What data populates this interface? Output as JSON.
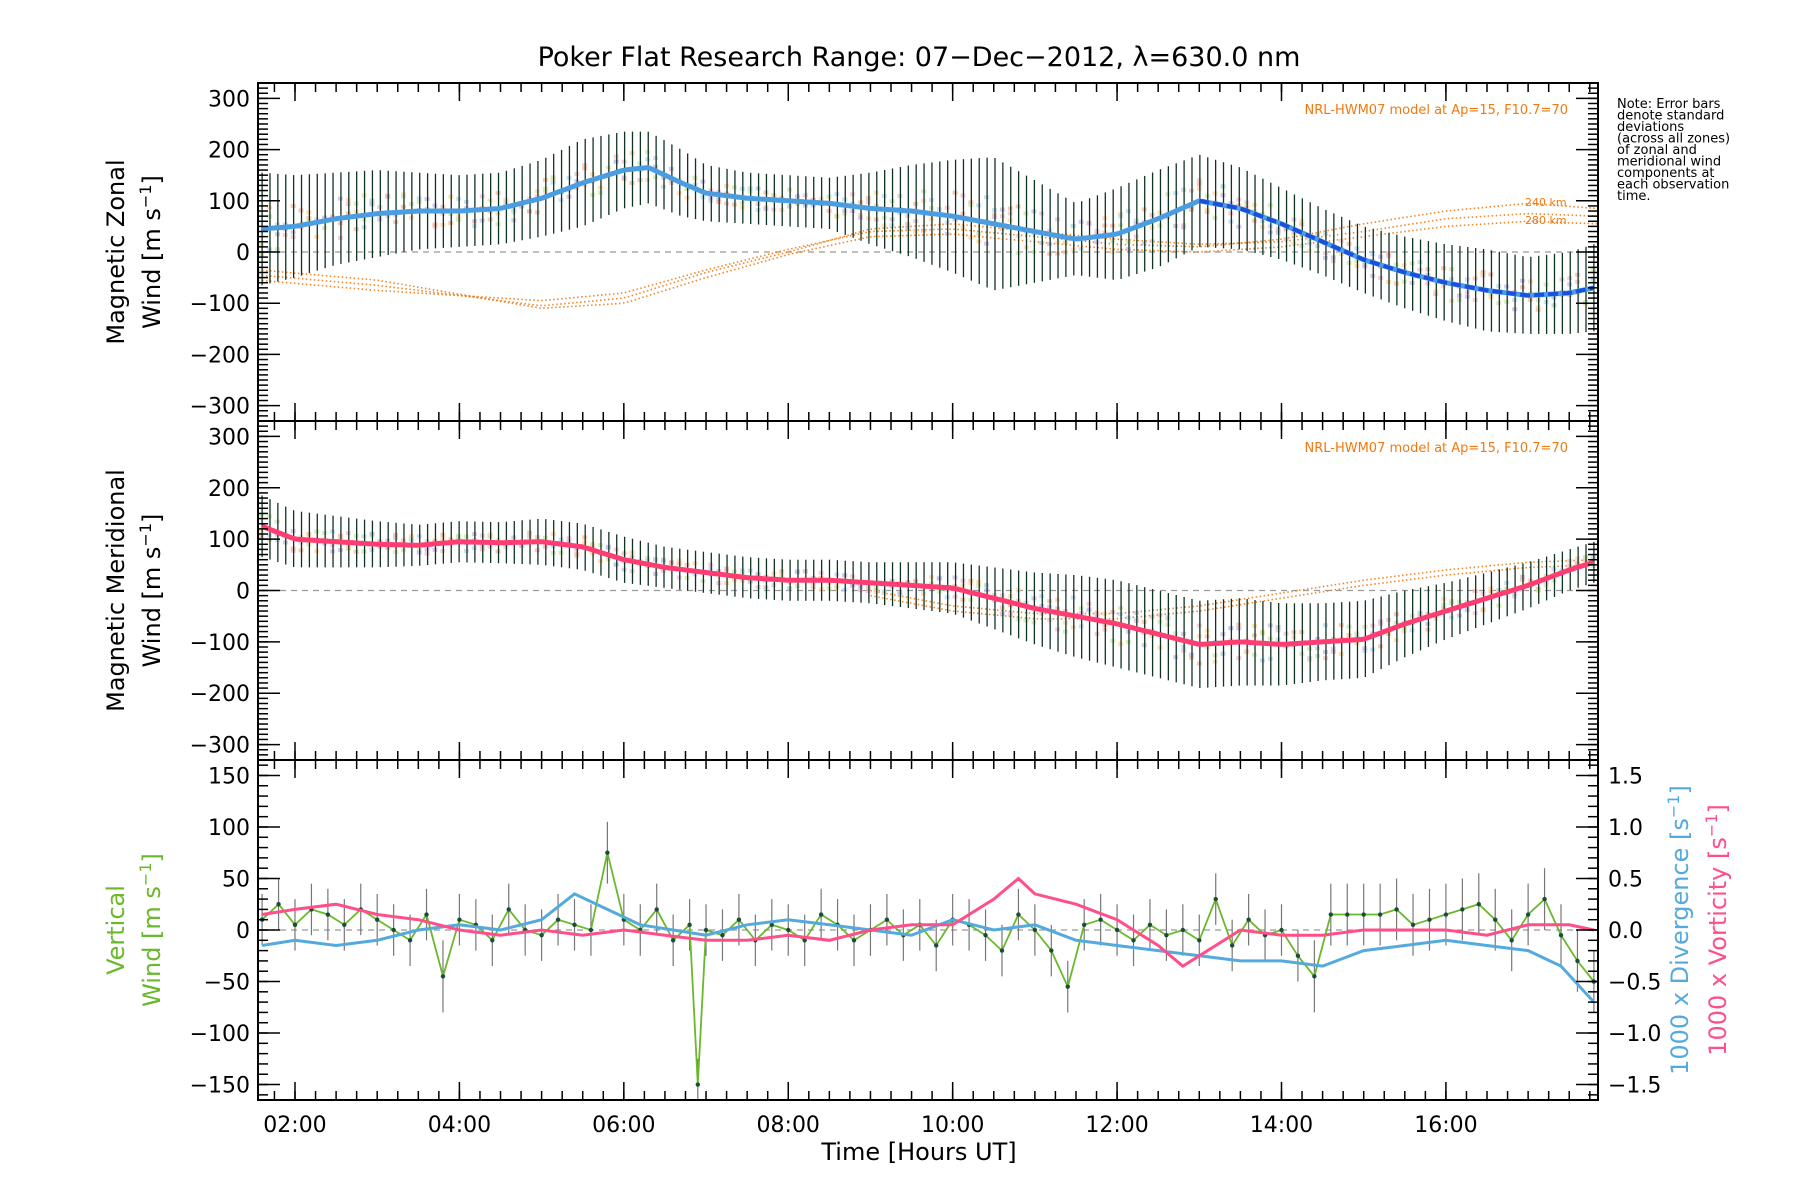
{
  "title": "Poker Flat Research Range: 07−Dec−2012, λ=630.0 nm",
  "note_lines": [
    "Note: Error bars",
    "denote standard",
    "deviations",
    "(across all zones)",
    "of zonal and",
    "meridional wind",
    "components at",
    "each observation",
    "time."
  ],
  "x_axis": {
    "label": "Time [Hours UT]",
    "ticks": [
      "02:00",
      "04:00",
      "06:00",
      "08:00",
      "10:00",
      "12:00",
      "14:00",
      "16:00"
    ],
    "tick_values": [
      2,
      4,
      6,
      8,
      10,
      12,
      14,
      16
    ],
    "range": [
      1.55,
      17.85
    ]
  },
  "colors": {
    "zonal": "#4a9de0",
    "zonal_late": "#1a4fe0",
    "meridional": "#ff3d73",
    "vertical": "#6ab82b",
    "divergence": "#55aadd",
    "vorticity": "#ff4f8b",
    "model": "#f07a10",
    "errorbar": "#113322"
  },
  "chart_data": [
    {
      "type": "line",
      "panel": "zonal",
      "ylabel_line1": "Magnetic Zonal",
      "ylabel_line2": "Wind [m s",
      "ylabel_sup": "−1",
      "ylabel_close": "]",
      "yticks": [
        "300",
        "200",
        "100",
        "0",
        "−100",
        "−200",
        "−300"
      ],
      "ytick_values": [
        300,
        200,
        100,
        0,
        -100,
        -200,
        -300
      ],
      "ylim": [
        -330,
        330
      ],
      "model_label": "NRL-HWM07 model at Ap=15, F10.7=70",
      "model_altitudes": [
        "240 km",
        "280 km"
      ],
      "series": [
        {
          "x": [
            1.6,
            2.0,
            2.5,
            3.0,
            3.5,
            4.0,
            4.5,
            5.0,
            5.5,
            6.0,
            6.3,
            6.7,
            7.0,
            7.5,
            8.0,
            8.5,
            9.0,
            9.5,
            10.0,
            10.5,
            11.0,
            11.5,
            12.0,
            12.5,
            13.0,
            13.5,
            14.0,
            14.5,
            15.0,
            15.5,
            16.0,
            16.5,
            17.0,
            17.5,
            17.8
          ],
          "y": [
            45,
            50,
            65,
            75,
            80,
            80,
            85,
            105,
            135,
            160,
            165,
            135,
            115,
            105,
            100,
            95,
            85,
            80,
            70,
            55,
            40,
            25,
            35,
            65,
            100,
            85,
            55,
            20,
            -15,
            -40,
            -60,
            -75,
            -85,
            -80,
            -70
          ],
          "err": [
            110,
            100,
            90,
            85,
            75,
            70,
            70,
            75,
            85,
            75,
            70,
            65,
            55,
            50,
            50,
            50,
            70,
            90,
            110,
            130,
            100,
            70,
            90,
            95,
            90,
            80,
            70,
            65,
            65,
            70,
            75,
            80,
            75,
            80,
            85
          ]
        }
      ],
      "model_curves": [
        {
          "x": [
            1.55,
            3.0,
            5.0,
            6.0,
            7.0,
            8.0,
            9.0,
            10.0,
            11.0,
            12.0,
            13.0,
            14.0,
            15.0,
            16.0,
            17.0,
            17.85
          ],
          "y": [
            -45,
            -65,
            -105,
            -90,
            -40,
            0,
            45,
            55,
            40,
            25,
            15,
            20,
            40,
            65,
            75,
            70
          ]
        },
        {
          "x": [
            1.55,
            3.0,
            5.0,
            6.0,
            7.0,
            8.0,
            9.0,
            10.0,
            11.0,
            12.0,
            13.0,
            14.0,
            15.0,
            16.0,
            17.0,
            17.85
          ],
          "y": [
            -55,
            -75,
            -95,
            -80,
            -35,
            5,
            40,
            45,
            30,
            15,
            10,
            25,
            55,
            80,
            95,
            85
          ]
        },
        {
          "x": [
            1.55,
            3.0,
            5.0,
            6.0,
            7.0,
            8.0,
            9.0,
            10.0,
            11.0,
            12.0,
            13.0,
            14.0,
            15.0,
            16.0,
            17.0,
            17.85
          ],
          "y": [
            -35,
            -55,
            -110,
            -100,
            -50,
            -5,
            30,
            35,
            20,
            5,
            0,
            10,
            30,
            50,
            60,
            55
          ]
        }
      ]
    },
    {
      "type": "line",
      "panel": "meridional",
      "ylabel_line1": "Magnetic Meridional",
      "ylabel_line2": "Wind [m s",
      "ylabel_sup": "−1",
      "ylabel_close": "]",
      "yticks": [
        "300",
        "200",
        "100",
        "0",
        "−100",
        "−200",
        "−300"
      ],
      "ytick_values": [
        300,
        200,
        100,
        0,
        -100,
        -200,
        -300
      ],
      "ylim": [
        -330,
        330
      ],
      "model_label": "NRL-HWM07 model at Ap=15, F10.7=70",
      "series": [
        {
          "x": [
            1.6,
            2.0,
            2.5,
            3.0,
            3.5,
            4.0,
            4.5,
            5.0,
            5.5,
            6.0,
            6.5,
            7.0,
            7.5,
            8.0,
            8.5,
            9.0,
            9.5,
            10.0,
            10.5,
            11.0,
            11.5,
            12.0,
            12.5,
            13.0,
            13.5,
            14.0,
            14.5,
            15.0,
            15.5,
            16.0,
            16.5,
            17.0,
            17.5,
            17.8
          ],
          "y": [
            125,
            100,
            95,
            90,
            88,
            95,
            93,
            95,
            85,
            60,
            45,
            35,
            25,
            20,
            20,
            15,
            10,
            5,
            -15,
            -35,
            -50,
            -65,
            -85,
            -105,
            -100,
            -105,
            -100,
            -95,
            -65,
            -40,
            -15,
            10,
            40,
            55
          ],
          "err": [
            60,
            55,
            50,
            45,
            40,
            40,
            40,
            45,
            45,
            45,
            40,
            40,
            40,
            40,
            40,
            40,
            45,
            50,
            60,
            70,
            80,
            85,
            85,
            85,
            85,
            80,
            75,
            75,
            65,
            55,
            50,
            45,
            40,
            40
          ]
        }
      ],
      "model_curves": [
        {
          "x": [
            9.0,
            10.0,
            11.0,
            12.0,
            13.0,
            14.0,
            15.0,
            16.0,
            17.0,
            17.85
          ],
          "y": [
            0,
            -30,
            -45,
            -45,
            -30,
            -5,
            20,
            40,
            55,
            60
          ]
        },
        {
          "x": [
            9.0,
            10.0,
            11.0,
            12.0,
            13.0,
            14.0,
            15.0,
            16.0,
            17.0,
            17.85
          ],
          "y": [
            -10,
            -40,
            -55,
            -55,
            -40,
            -15,
            10,
            30,
            45,
            50
          ]
        }
      ]
    },
    {
      "type": "line",
      "panel": "vertical",
      "ylabel_line1": "Vertical",
      "ylabel_line2": "Wind [m s",
      "ylabel_sup": "−1",
      "ylabel_close": "]",
      "yticks": [
        "150",
        "100",
        "50",
        "0",
        "−50",
        "−100",
        "−150"
      ],
      "ytick_values": [
        150,
        100,
        50,
        0,
        -50,
        -100,
        -150
      ],
      "ylim": [
        -165,
        165
      ],
      "right_yticks": [
        "1.5",
        "1.0",
        "0.5",
        "0.0",
        "−0.5",
        "−1.0",
        "−1.5"
      ],
      "right_ytick_values": [
        1.5,
        1.0,
        0.5,
        0.0,
        -0.5,
        -1.0,
        -1.5
      ],
      "right_ylim": [
        -1.65,
        1.65
      ],
      "right_label_div": "1000 x Divergence [s",
      "right_label_vort": "1000 x Vorticity [s",
      "right_label_sup": "−1",
      "right_label_close": "]",
      "series": [
        {
          "name": "vertical",
          "x": [
            1.6,
            1.8,
            2.0,
            2.2,
            2.4,
            2.6,
            2.8,
            3.0,
            3.2,
            3.4,
            3.6,
            3.8,
            4.0,
            4.2,
            4.4,
            4.6,
            4.8,
            5.0,
            5.2,
            5.4,
            5.6,
            5.8,
            6.0,
            6.2,
            6.4,
            6.6,
            6.8,
            6.9,
            7.0,
            7.2,
            7.4,
            7.6,
            7.8,
            8.0,
            8.2,
            8.4,
            8.6,
            8.8,
            9.0,
            9.2,
            9.4,
            9.6,
            9.8,
            10.0,
            10.2,
            10.4,
            10.6,
            10.8,
            11.0,
            11.2,
            11.4,
            11.6,
            11.8,
            12.0,
            12.2,
            12.4,
            12.6,
            12.8,
            13.0,
            13.2,
            13.4,
            13.6,
            13.8,
            14.0,
            14.2,
            14.4,
            14.6,
            14.8,
            15.0,
            15.2,
            15.4,
            15.6,
            15.8,
            16.0,
            16.2,
            16.4,
            16.6,
            16.8,
            17.0,
            17.2,
            17.4,
            17.6,
            17.8
          ],
          "y": [
            10,
            25,
            5,
            20,
            15,
            5,
            20,
            10,
            0,
            -10,
            15,
            -45,
            10,
            5,
            -10,
            20,
            0,
            -5,
            10,
            5,
            0,
            75,
            10,
            0,
            20,
            -10,
            5,
            -150,
            0,
            -5,
            10,
            -10,
            5,
            0,
            -10,
            15,
            5,
            -10,
            0,
            10,
            -5,
            5,
            -15,
            10,
            5,
            -5,
            -20,
            15,
            0,
            -20,
            -55,
            5,
            10,
            0,
            -10,
            5,
            -5,
            0,
            -10,
            30,
            -15,
            10,
            -5,
            0,
            -25,
            -45,
            15,
            15,
            15,
            15,
            20,
            5,
            10,
            15,
            20,
            25,
            10,
            -10,
            15,
            30,
            -5,
            -30,
            -50
          ],
          "err": [
            25,
            25,
            25,
            25,
            25,
            25,
            25,
            25,
            25,
            25,
            25,
            35,
            25,
            25,
            25,
            25,
            25,
            25,
            25,
            25,
            25,
            30,
            25,
            25,
            25,
            25,
            25,
            25,
            25,
            25,
            25,
            25,
            25,
            25,
            25,
            25,
            25,
            25,
            25,
            25,
            25,
            25,
            25,
            25,
            25,
            25,
            25,
            25,
            25,
            25,
            25,
            25,
            25,
            25,
            25,
            25,
            25,
            25,
            25,
            25,
            25,
            25,
            25,
            25,
            25,
            35,
            30,
            30,
            30,
            30,
            30,
            30,
            30,
            30,
            30,
            30,
            30,
            30,
            30,
            30,
            30,
            30,
            30
          ]
        },
        {
          "name": "divergence",
          "x": [
            1.6,
            2.0,
            2.5,
            3.0,
            3.5,
            4.0,
            4.5,
            5.0,
            5.4,
            5.8,
            6.2,
            6.6,
            7.0,
            7.5,
            8.0,
            8.5,
            9.0,
            9.5,
            10.0,
            10.5,
            11.0,
            11.5,
            12.0,
            12.5,
            13.0,
            13.5,
            14.0,
            14.5,
            15.0,
            15.5,
            16.0,
            16.5,
            17.0,
            17.4,
            17.8
          ],
          "y": [
            -0.15,
            -0.1,
            -0.15,
            -0.1,
            0.0,
            0.05,
            0.0,
            0.1,
            0.35,
            0.2,
            0.05,
            0.0,
            -0.05,
            0.05,
            0.1,
            0.05,
            0.0,
            -0.05,
            0.1,
            0.0,
            0.05,
            -0.1,
            -0.15,
            -0.2,
            -0.25,
            -0.3,
            -0.3,
            -0.35,
            -0.2,
            -0.15,
            -0.1,
            -0.15,
            -0.2,
            -0.35,
            -0.7
          ]
        },
        {
          "name": "vorticity",
          "x": [
            1.6,
            2.0,
            2.5,
            3.0,
            3.5,
            4.0,
            4.5,
            5.0,
            5.5,
            6.0,
            6.5,
            7.0,
            7.5,
            8.0,
            8.5,
            9.0,
            9.5,
            10.0,
            10.5,
            10.8,
            11.0,
            11.5,
            12.0,
            12.5,
            12.8,
            13.0,
            13.5,
            14.0,
            14.5,
            15.0,
            15.5,
            16.0,
            16.5,
            17.0,
            17.5,
            17.8
          ],
          "y": [
            0.15,
            0.2,
            0.25,
            0.15,
            0.1,
            0.0,
            -0.05,
            0.0,
            -0.05,
            0.0,
            -0.05,
            -0.1,
            -0.1,
            -0.05,
            -0.1,
            0.0,
            0.05,
            0.05,
            0.3,
            0.5,
            0.35,
            0.25,
            0.1,
            -0.15,
            -0.35,
            -0.25,
            0.0,
            -0.05,
            -0.05,
            0.0,
            0.0,
            0.0,
            -0.05,
            0.05,
            0.05,
            0.0
          ]
        }
      ]
    }
  ]
}
